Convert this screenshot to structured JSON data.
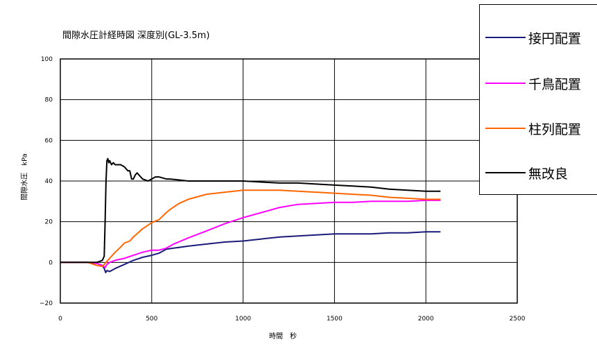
{
  "chart_data": {
    "type": "line",
    "title": "間隙水圧計経時図 深度別(GL-3.5m)",
    "xlabel": "時間　秒",
    "ylabel": "間隙水圧　kPa",
    "xlim": [
      0,
      2500
    ],
    "ylim": [
      -20,
      100
    ],
    "xticks": [
      0,
      500,
      1000,
      1500,
      2000,
      2500
    ],
    "yticks": [
      -20,
      0,
      20,
      40,
      60,
      80,
      100
    ],
    "grid": true,
    "legend_position": "top-right, outside plot",
    "series": [
      {
        "name": "接円配置",
        "color": "#1a1a7a",
        "x": [
          0,
          150,
          200,
          230,
          240,
          248,
          255,
          270,
          300,
          350,
          400,
          450,
          500,
          540,
          580,
          620,
          700,
          800,
          900,
          1000,
          1100,
          1200,
          1300,
          1400,
          1500,
          1600,
          1700,
          1800,
          1900,
          2000,
          2080
        ],
        "y": [
          0,
          0,
          -0.5,
          -1.5,
          -3,
          -5,
          -4,
          -4.5,
          -3,
          -1,
          1,
          2.5,
          3.5,
          4.5,
          6.5,
          7,
          8,
          9,
          10,
          10.5,
          11.5,
          12.5,
          13,
          13.5,
          14,
          14,
          14,
          14.5,
          14.5,
          15,
          15
        ]
      },
      {
        "name": "千鳥配置",
        "color": "#ff00ff",
        "x": [
          0,
          150,
          200,
          230,
          245,
          255,
          270,
          300,
          350,
          400,
          450,
          500,
          540,
          580,
          620,
          700,
          800,
          900,
          1000,
          1100,
          1200,
          1300,
          1400,
          1500,
          1600,
          1700,
          1800,
          1900,
          2000,
          2080
        ],
        "y": [
          0,
          0,
          -0.5,
          -1.5,
          -2.5,
          -1,
          0,
          1,
          2,
          3.5,
          5,
          6,
          6,
          7,
          9,
          12,
          15.5,
          19,
          22,
          24.5,
          27,
          28.5,
          29,
          29.5,
          29.5,
          30,
          30,
          30,
          30.5,
          30.5
        ]
      },
      {
        "name": "柱列配置",
        "color": "#ff6600",
        "x": [
          0,
          150,
          200,
          230,
          240,
          250,
          260,
          280,
          300,
          330,
          350,
          380,
          400,
          450,
          500,
          540,
          580,
          600,
          650,
          700,
          800,
          900,
          1000,
          1100,
          1200,
          1300,
          1400,
          1500,
          1600,
          1700,
          1800,
          1900,
          2000,
          2080
        ],
        "y": [
          0,
          0,
          -1.5,
          -2,
          -1,
          0,
          1,
          3,
          5,
          7.5,
          9.5,
          10.5,
          12.5,
          16.5,
          19.5,
          21,
          24.5,
          26,
          29,
          31,
          33.5,
          34.5,
          35.5,
          35.5,
          35.5,
          35,
          34.5,
          34,
          33.5,
          33,
          32,
          31.5,
          31,
          31
        ]
      },
      {
        "name": "無改良",
        "color": "#000000",
        "x": [
          0,
          150,
          200,
          230,
          240,
          245,
          250,
          255,
          260,
          265,
          270,
          280,
          290,
          300,
          330,
          350,
          370,
          380,
          390,
          400,
          410,
          420,
          450,
          480,
          500,
          520,
          540,
          580,
          600,
          650,
          700,
          800,
          900,
          1000,
          1100,
          1200,
          1300,
          1400,
          1500,
          1600,
          1700,
          1800,
          1900,
          2000,
          2080
        ],
        "y": [
          0,
          0,
          0,
          1,
          3,
          20,
          40,
          50,
          51,
          49,
          50,
          48,
          49,
          48,
          48,
          47,
          45,
          45,
          41,
          41,
          43,
          44,
          41,
          40,
          41,
          42,
          42,
          41,
          41,
          40.5,
          40,
          40,
          40,
          40,
          39.5,
          39,
          39,
          38.5,
          38,
          37.5,
          37,
          36,
          35.5,
          35,
          35
        ]
      }
    ]
  }
}
